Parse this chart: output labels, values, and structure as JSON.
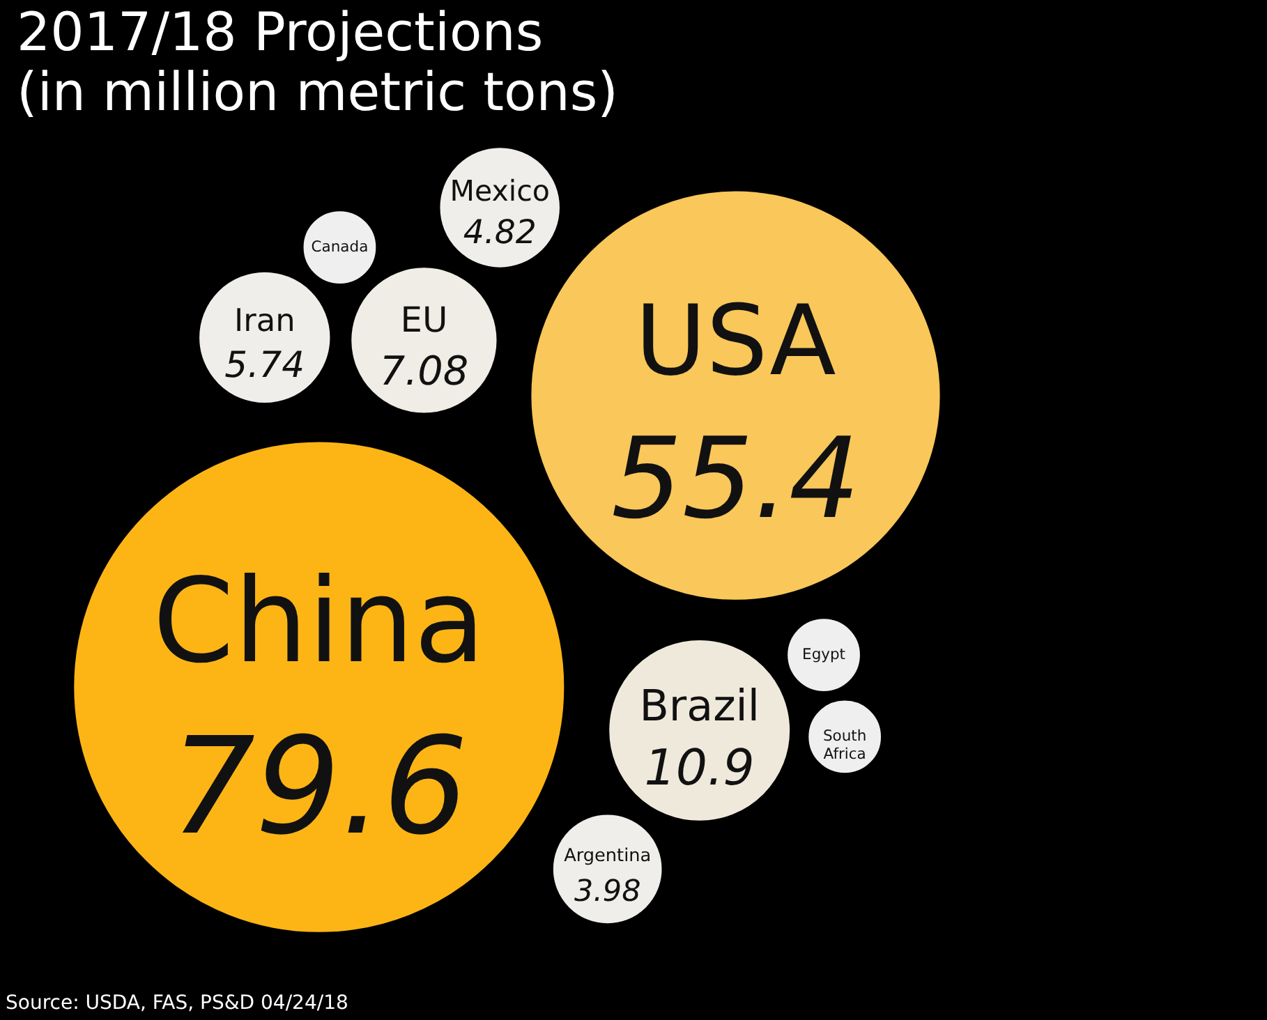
{
  "chart_data": {
    "type": "other",
    "title": "2017/18 Projections",
    "subtitle": "(in million metric tons)",
    "categories": [
      "China",
      "USA",
      "Brazil",
      "EU",
      "Iran",
      "Mexico",
      "Argentina",
      "Egypt",
      "Canada",
      "South Africa"
    ],
    "values": [
      79.6,
      55.4,
      10.9,
      7.08,
      5.74,
      4.82,
      3.98,
      null,
      null,
      null
    ],
    "colors": [
      "#fdb515",
      "#f9c75a",
      "#efe9dc",
      "#efede6",
      "#efeeea",
      "#efeeea",
      "#efeeea",
      "#efefef",
      "#efefef",
      "#efefef"
    ],
    "data_labels": true,
    "annotations": [
      "Source: USDA, FAS, PS&D 04/24/18"
    ]
  }
}
